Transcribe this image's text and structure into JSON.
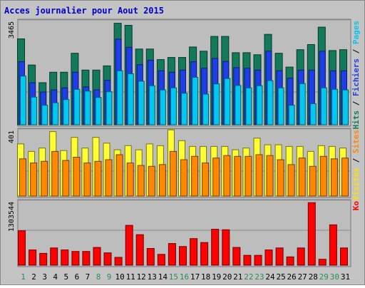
{
  "chart_data": {
    "type": "bar",
    "title": "Acces journalier pour Aout 2015",
    "categories": [
      "1",
      "2",
      "3",
      "4",
      "5",
      "6",
      "7",
      "8",
      "9",
      "10",
      "11",
      "12",
      "13",
      "14",
      "15",
      "16",
      "17",
      "18",
      "19",
      "20",
      "21",
      "22",
      "23",
      "24",
      "25",
      "26",
      "27",
      "28",
      "29",
      "30",
      "31"
    ],
    "weekend_days": [
      "1",
      "8",
      "9",
      "15",
      "16",
      "22",
      "23",
      "29",
      "30"
    ],
    "panels": [
      {
        "max_label": "3465",
        "ymax": 3465,
        "legend": [
          {
            "label": "Pages",
            "color": "#00c8f0"
          },
          {
            "label": "Fichiers",
            "color": "#1e3ee8"
          },
          {
            "label": "Hits",
            "color": "#127a5a"
          }
        ],
        "separator": "/",
        "series": [
          {
            "name": "Hits",
            "color": "#127a5a",
            "values": [
              2860,
              1990,
              1400,
              1750,
              1750,
              2380,
              1820,
              1820,
              1960,
              3380,
              3310,
              2520,
              2520,
              2170,
              2240,
              2240,
              2590,
              2450,
              2940,
              2940,
              2400,
              2400,
              2330,
              3010,
              2380,
              1920,
              2500,
              2670,
              3250,
              2470,
              2500
            ]
          },
          {
            "name": "Fichiers",
            "color": "#1e3ee8",
            "values": [
              2100,
              1400,
              1090,
              1160,
              1230,
              1750,
              1260,
              1160,
              1480,
              2850,
              2580,
              2000,
              2150,
              1800,
              1750,
              1820,
              2100,
              1880,
              2210,
              2110,
              1900,
              1880,
              1820,
              2450,
              1800,
              1550,
              1820,
              1820,
              2450,
              1800,
              1800
            ]
          },
          {
            "name": "Pages",
            "color": "#00c8f0",
            "values": [
              1620,
              920,
              650,
              730,
              840,
              1180,
              1120,
              910,
              1100,
              1800,
              1700,
              1450,
              1300,
              1160,
              1230,
              1050,
              1580,
              1020,
              1360,
              1540,
              1310,
              1230,
              1300,
              1470,
              1230,
              650,
              1370,
              700,
              1230,
              1180,
              1160
            ]
          }
        ]
      },
      {
        "max_label": "401",
        "ymax": 401,
        "legend": [
          {
            "label": "Sites",
            "color": "#ff8800"
          },
          {
            "label": "Visites",
            "color": "#ffe000"
          }
        ],
        "separator": "/",
        "series": [
          {
            "name": "Visites",
            "color": "#ffff33",
            "values": [
              315,
              270,
              290,
              390,
              275,
              355,
              290,
              355,
              320,
              280,
              305,
              280,
              315,
              305,
              400,
              335,
              300,
              300,
              300,
              300,
              280,
              290,
              350,
              310,
              310,
              300,
              300,
              270,
              305,
              300,
              290
            ]
          },
          {
            "name": "Sites",
            "color": "#ff8800",
            "values": [
              225,
              200,
              210,
              270,
              215,
              235,
              200,
              210,
              220,
              250,
              200,
              185,
              180,
              190,
              270,
              220,
              240,
              200,
              230,
              245,
              240,
              240,
              250,
              245,
              220,
              190,
              230,
              180,
              240,
              225,
              230
            ]
          }
        ]
      },
      {
        "max_label": "1303544",
        "ymax": 1303544,
        "legend": [
          {
            "label": "Ko",
            "color": "#ff0000"
          }
        ],
        "separator": "",
        "series": [
          {
            "name": "Ko",
            "color": "#ff0000",
            "values": [
              700000,
              310000,
              240000,
              350000,
              310000,
              280000,
              280000,
              360000,
              250000,
              160000,
              810000,
              620000,
              340000,
              220000,
              440000,
              380000,
              540000,
              460000,
              730000,
              720000,
              360000,
              200000,
              200000,
              310000,
              350000,
              170000,
              350000,
              1270000,
              120000,
              820000,
              350000
            ]
          }
        ]
      }
    ]
  }
}
